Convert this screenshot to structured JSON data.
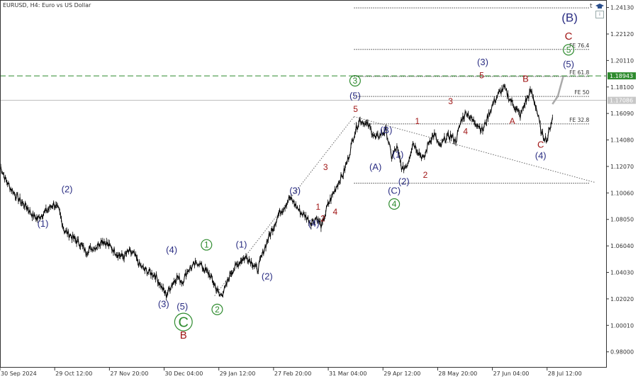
{
  "header": {
    "title": "EURUSD, H4:  Euro vs US Dollar"
  },
  "icons": {
    "mode_letter": "t",
    "hat_icon": "graduation-cap-icon",
    "box_icon": "info-box-icon",
    "box_text": "i"
  },
  "colors": {
    "navy": "#2b2e83",
    "darkred": "#a01515",
    "green": "#2e8b2e",
    "candle": "#000000",
    "grid": "#333333",
    "fib_line": "#444444",
    "green_dash": "#2e8b2e",
    "price_line": "#bbbbbb",
    "forecast": "#aaaaaa"
  },
  "chart_data": {
    "type": "line",
    "title": "EURUSD, H4:  Euro vs US Dollar",
    "xlabel": "",
    "ylabel": "",
    "ylim": [
      0.968,
      1.247
    ],
    "y_ticks": [
      "1.24130",
      "1.22120",
      "1.20110",
      "1.18100",
      "1.16090",
      "1.14080",
      "1.12070",
      "1.10060",
      "1.08050",
      "1.06040",
      "1.04030",
      "1.02020",
      "1.00010",
      "0.98000"
    ],
    "x_ticks": [
      "30 Sep 2024",
      "29 Oct 12:00",
      "27 Nov 20:00",
      "30 Dec 04:00",
      "29 Jan 12:00",
      "27 Feb 20:00",
      "31 Mar 04:00",
      "29 Apr 12:00",
      "28 May 20:00",
      "27 Jun 04:00",
      "28 Jul 12:00"
    ],
    "x_range": [
      0,
      113
    ],
    "series": [
      {
        "kind": "price",
        "x": [
          0,
          1,
          2,
          3,
          4,
          5,
          6,
          7,
          8,
          9,
          10,
          11,
          12,
          13,
          14,
          15,
          16,
          17,
          18,
          19,
          20,
          21,
          22,
          23,
          24,
          25,
          26,
          27,
          28,
          29,
          30,
          31,
          32,
          33,
          34,
          35,
          36,
          37,
          38,
          39,
          40,
          41,
          42,
          43,
          44,
          45,
          46,
          47,
          48,
          49,
          50,
          51,
          52,
          53,
          54,
          55,
          56,
          57,
          58,
          59,
          60,
          61,
          62,
          63,
          64,
          65,
          66,
          67,
          68,
          69,
          70,
          71,
          72,
          73,
          74,
          75,
          76,
          77,
          78,
          79,
          80,
          81,
          82,
          83,
          84,
          85,
          86,
          87,
          88,
          89,
          90,
          91,
          92,
          93,
          94,
          95,
          96,
          97,
          98,
          99,
          100,
          101,
          102,
          103
        ],
        "y": [
          1.122,
          1.111,
          1.104,
          1.0985,
          1.0935,
          1.09,
          1.084,
          1.081,
          1.085,
          1.088,
          1.0925,
          1.087,
          1.072,
          1.069,
          1.065,
          1.062,
          1.056,
          1.0585,
          1.06,
          1.065,
          1.062,
          1.058,
          1.054,
          1.052,
          1.056,
          1.054,
          1.046,
          1.042,
          1.04,
          1.038,
          1.03,
          1.023,
          1.031,
          1.037,
          1.033,
          1.042,
          1.045,
          1.048,
          1.043,
          1.039,
          1.031,
          1.0225,
          1.028,
          1.04,
          1.045,
          1.05,
          1.052,
          1.048,
          1.042,
          1.055,
          1.066,
          1.075,
          1.085,
          1.09,
          1.097,
          1.092,
          1.086,
          1.083,
          1.078,
          1.082,
          1.075,
          1.09,
          1.099,
          1.108,
          1.115,
          1.128,
          1.145,
          1.156,
          1.154,
          1.15,
          1.142,
          1.145,
          1.148,
          1.128,
          1.135,
          1.118,
          1.123,
          1.139,
          1.132,
          1.126,
          1.14,
          1.145,
          1.135,
          1.142,
          1.144,
          1.14,
          1.156,
          1.162,
          1.156,
          1.153,
          1.148,
          1.159,
          1.169,
          1.176,
          1.1805,
          1.172,
          1.166,
          1.159,
          1.17,
          1.178,
          1.165,
          1.145,
          1.141,
          1.158
        ]
      },
      {
        "kind": "forecast",
        "x": [
          103,
          104,
          105
        ],
        "y": [
          1.168,
          1.174,
          1.189
        ]
      }
    ],
    "horizontal_levels": [
      {
        "label": "",
        "value": 1.241
      },
      {
        "label": "FE 76.4",
        "value": 1.2095
      },
      {
        "label": "FE 61.8",
        "value": 1.189
      },
      {
        "label": "FE 50",
        "value": 1.1738
      },
      {
        "label": "FE 32.8",
        "value": 1.153
      },
      {
        "label": "",
        "value": 1.108
      }
    ],
    "highlight_price": {
      "label": "1.18943",
      "value": 1.18943
    },
    "current_price": {
      "label": "1.17086",
      "value": 1.17086
    },
    "trendline": {
      "from": [
        66,
        1.1585
      ],
      "to": [
        111,
        1.1085
      ]
    },
    "support_line": {
      "from": [
        40,
        1.0225
      ],
      "to": [
        66,
        1.1585
      ]
    },
    "wave_labels": [
      {
        "text": "(1)",
        "x": 8,
        "y": 1.075,
        "color": "navy",
        "size": 13
      },
      {
        "text": "(2)",
        "x": 12.5,
        "y": 1.101,
        "color": "navy",
        "size": 13
      },
      {
        "text": "(3)",
        "x": 30.5,
        "y": 1.014,
        "color": "navy",
        "size": 13
      },
      {
        "text": "(4)",
        "x": 32,
        "y": 1.055,
        "color": "navy",
        "size": 13
      },
      {
        "text": "(5)",
        "x": 34,
        "y": 1.012,
        "color": "navy",
        "size": 13
      },
      {
        "text": "C",
        "x": 34.2,
        "y": 0.999,
        "color": "green",
        "size": 20,
        "circled": true
      },
      {
        "text": "B",
        "x": 34.2,
        "y": 0.99,
        "color": "darkred",
        "size": 15
      },
      {
        "text": "1",
        "x": 38.5,
        "y": 1.059,
        "color": "green",
        "size": 12,
        "circled": true
      },
      {
        "text": "2",
        "x": 40.5,
        "y": 1.01,
        "color": "green",
        "size": 12,
        "circled": true
      },
      {
        "text": "(1)",
        "x": 45,
        "y": 1.059,
        "color": "navy",
        "size": 13
      },
      {
        "text": "(2)",
        "x": 49.8,
        "y": 1.035,
        "color": "navy",
        "size": 13
      },
      {
        "text": "(3)",
        "x": 55,
        "y": 1.1,
        "color": "navy",
        "size": 13
      },
      {
        "text": "(4)",
        "x": 58.5,
        "y": 1.075,
        "color": "navy",
        "size": 13
      },
      {
        "text": "1",
        "x": 59.3,
        "y": 1.088,
        "color": "darkred",
        "size": 12
      },
      {
        "text": "2",
        "x": 60.2,
        "y": 1.079,
        "color": "darkred",
        "size": 12
      },
      {
        "text": "3",
        "x": 60.7,
        "y": 1.118,
        "color": "darkred",
        "size": 12
      },
      {
        "text": "4",
        "x": 62.5,
        "y": 1.084,
        "color": "darkred",
        "size": 12
      },
      {
        "text": "3",
        "x": 66.2,
        "y": 1.1835,
        "color": "green",
        "size": 12,
        "circled": true
      },
      {
        "text": "(5)",
        "x": 66.2,
        "y": 1.172,
        "color": "navy",
        "size": 13
      },
      {
        "text": "5",
        "x": 66.3,
        "y": 1.162,
        "color": "darkred",
        "size": 12
      },
      {
        "text": "(B)",
        "x": 72,
        "y": 1.146,
        "color": "navy",
        "size": 13
      },
      {
        "text": "(A)",
        "x": 70,
        "y": 1.118,
        "color": "navy",
        "size": 13
      },
      {
        "text": "(1)",
        "x": 74.2,
        "y": 1.1275,
        "color": "navy",
        "size": 13
      },
      {
        "text": "(2)",
        "x": 75.3,
        "y": 1.107,
        "color": "navy",
        "size": 13
      },
      {
        "text": "(C)",
        "x": 73.5,
        "y": 1.1,
        "color": "navy",
        "size": 13
      },
      {
        "text": "4",
        "x": 73.5,
        "y": 1.09,
        "color": "green",
        "size": 12,
        "circled": true
      },
      {
        "text": "1",
        "x": 77.8,
        "y": 1.153,
        "color": "darkred",
        "size": 12
      },
      {
        "text": "2",
        "x": 79.3,
        "y": 1.112,
        "color": "darkred",
        "size": 12
      },
      {
        "text": "3",
        "x": 84,
        "y": 1.168,
        "color": "darkred",
        "size": 12
      },
      {
        "text": "4",
        "x": 86.8,
        "y": 1.145,
        "color": "darkred",
        "size": 12
      },
      {
        "text": "(3)",
        "x": 90,
        "y": 1.1975,
        "color": "navy",
        "size": 13
      },
      {
        "text": "5",
        "x": 89.8,
        "y": 1.1875,
        "color": "darkred",
        "size": 12
      },
      {
        "text": "A",
        "x": 95.5,
        "y": 1.153,
        "color": "darkred",
        "size": 12
      },
      {
        "text": "B",
        "x": 98,
        "y": 1.185,
        "color": "darkred",
        "size": 13
      },
      {
        "text": "C",
        "x": 100.8,
        "y": 1.135,
        "color": "darkred",
        "size": 13
      },
      {
        "text": "(4)",
        "x": 100.8,
        "y": 1.1265,
        "color": "navy",
        "size": 13
      },
      {
        "text": "(5)",
        "x": 106,
        "y": 1.196,
        "color": "navy",
        "size": 13
      },
      {
        "text": "5",
        "x": 106,
        "y": 1.207,
        "color": "green",
        "size": 12,
        "circled": true
      },
      {
        "text": "C",
        "x": 106,
        "y": 1.217,
        "color": "darkred",
        "size": 15
      },
      {
        "text": "(B)",
        "x": 106.2,
        "y": 1.2305,
        "color": "navy",
        "size": 17
      }
    ]
  }
}
